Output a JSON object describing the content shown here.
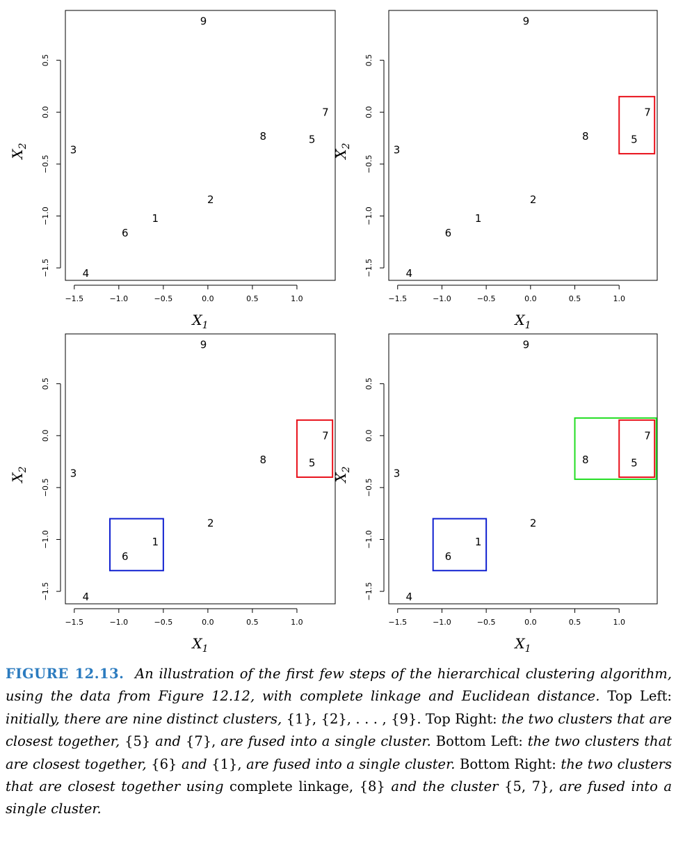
{
  "chart_data": [
    {
      "type": "scatter",
      "panel": "Top Left",
      "xlabel": "X",
      "xlabel_sub": "1",
      "ylabel": "X",
      "ylabel_sub": "2",
      "xlim": [
        -1.6,
        1.43
      ],
      "ylim": [
        -1.62,
        0.98
      ],
      "xticks": [
        -1.5,
        -1.0,
        -0.5,
        0.0,
        0.5,
        1.0
      ],
      "xtick_labels": [
        "−1.5",
        "−1.0",
        "−0.5",
        "0.0",
        "0.5",
        "1.0"
      ],
      "yticks": [
        -1.5,
        -1.0,
        -0.5,
        0.0,
        0.5
      ],
      "ytick_labels": [
        "−1.5",
        "−1.0",
        "−0.5",
        "0.0",
        "0.5"
      ],
      "points": [
        {
          "label": "1",
          "x": -0.59,
          "y": -1.02
        },
        {
          "label": "2",
          "x": 0.03,
          "y": -0.84
        },
        {
          "label": "3",
          "x": -1.51,
          "y": -0.36
        },
        {
          "label": "4",
          "x": -1.37,
          "y": -1.55
        },
        {
          "label": "5",
          "x": 1.17,
          "y": -0.26
        },
        {
          "label": "6",
          "x": -0.93,
          "y": -1.16
        },
        {
          "label": "7",
          "x": 1.32,
          "y": 0.0
        },
        {
          "label": "8",
          "x": 0.62,
          "y": -0.23
        },
        {
          "label": "9",
          "x": -0.05,
          "y": 0.88
        }
      ],
      "clusters": []
    },
    {
      "type": "scatter",
      "panel": "Top Right",
      "xlabel": "X",
      "xlabel_sub": "1",
      "ylabel": "X",
      "ylabel_sub": "2",
      "xlim": [
        -1.6,
        1.43
      ],
      "ylim": [
        -1.62,
        0.98
      ],
      "xticks": [
        -1.5,
        -1.0,
        -0.5,
        0.0,
        0.5,
        1.0
      ],
      "xtick_labels": [
        "−1.5",
        "−1.0",
        "−0.5",
        "0.0",
        "0.5",
        "1.0"
      ],
      "yticks": [
        -1.5,
        -1.0,
        -0.5,
        0.0,
        0.5
      ],
      "ytick_labels": [
        "−1.5",
        "−1.0",
        "−0.5",
        "0.0",
        "0.5"
      ],
      "points": [
        {
          "label": "1",
          "x": -0.59,
          "y": -1.02
        },
        {
          "label": "2",
          "x": 0.03,
          "y": -0.84
        },
        {
          "label": "3",
          "x": -1.51,
          "y": -0.36
        },
        {
          "label": "4",
          "x": -1.37,
          "y": -1.55
        },
        {
          "label": "5",
          "x": 1.17,
          "y": -0.26
        },
        {
          "label": "6",
          "x": -0.93,
          "y": -1.16
        },
        {
          "label": "7",
          "x": 1.32,
          "y": 0.0
        },
        {
          "label": "8",
          "x": 0.62,
          "y": -0.23
        },
        {
          "label": "9",
          "x": -0.05,
          "y": 0.88
        }
      ],
      "clusters": [
        {
          "members": [
            "5",
            "7"
          ],
          "color": "#e8101a",
          "x0": 1.0,
          "x1": 1.4,
          "y0": -0.4,
          "y1": 0.15
        }
      ]
    },
    {
      "type": "scatter",
      "panel": "Bottom Left",
      "xlabel": "X",
      "xlabel_sub": "1",
      "ylabel": "X",
      "ylabel_sub": "2",
      "xlim": [
        -1.6,
        1.43
      ],
      "ylim": [
        -1.62,
        0.98
      ],
      "xticks": [
        -1.5,
        -1.0,
        -0.5,
        0.0,
        0.5,
        1.0
      ],
      "xtick_labels": [
        "−1.5",
        "−1.0",
        "−0.5",
        "0.0",
        "0.5",
        "1.0"
      ],
      "yticks": [
        -1.5,
        -1.0,
        -0.5,
        0.0,
        0.5
      ],
      "ytick_labels": [
        "−1.5",
        "−1.0",
        "−0.5",
        "0.0",
        "0.5"
      ],
      "points": [
        {
          "label": "1",
          "x": -0.59,
          "y": -1.02
        },
        {
          "label": "2",
          "x": 0.03,
          "y": -0.84
        },
        {
          "label": "3",
          "x": -1.51,
          "y": -0.36
        },
        {
          "label": "4",
          "x": -1.37,
          "y": -1.55
        },
        {
          "label": "5",
          "x": 1.17,
          "y": -0.26
        },
        {
          "label": "6",
          "x": -0.93,
          "y": -1.16
        },
        {
          "label": "7",
          "x": 1.32,
          "y": 0.0
        },
        {
          "label": "8",
          "x": 0.62,
          "y": -0.23
        },
        {
          "label": "9",
          "x": -0.05,
          "y": 0.88
        }
      ],
      "clusters": [
        {
          "members": [
            "5",
            "7"
          ],
          "color": "#e8101a",
          "x0": 1.0,
          "x1": 1.4,
          "y0": -0.4,
          "y1": 0.15
        },
        {
          "members": [
            "6",
            "1"
          ],
          "color": "#1020d0",
          "x0": -1.1,
          "x1": -0.5,
          "y0": -1.3,
          "y1": -0.8
        }
      ]
    },
    {
      "type": "scatter",
      "panel": "Bottom Right",
      "xlabel": "X",
      "xlabel_sub": "1",
      "ylabel": "X",
      "ylabel_sub": "2",
      "xlim": [
        -1.6,
        1.43
      ],
      "ylim": [
        -1.62,
        0.98
      ],
      "xticks": [
        -1.5,
        -1.0,
        -0.5,
        0.0,
        0.5,
        1.0
      ],
      "xtick_labels": [
        "−1.5",
        "−1.0",
        "−0.5",
        "0.0",
        "0.5",
        "1.0"
      ],
      "yticks": [
        -1.5,
        -1.0,
        -0.5,
        0.0,
        0.5
      ],
      "ytick_labels": [
        "−1.5",
        "−1.0",
        "−0.5",
        "0.0",
        "0.5"
      ],
      "points": [
        {
          "label": "1",
          "x": -0.59,
          "y": -1.02
        },
        {
          "label": "2",
          "x": 0.03,
          "y": -0.84
        },
        {
          "label": "3",
          "x": -1.51,
          "y": -0.36
        },
        {
          "label": "4",
          "x": -1.37,
          "y": -1.55
        },
        {
          "label": "5",
          "x": 1.17,
          "y": -0.26
        },
        {
          "label": "6",
          "x": -0.93,
          "y": -1.16
        },
        {
          "label": "7",
          "x": 1.32,
          "y": 0.0
        },
        {
          "label": "8",
          "x": 0.62,
          "y": -0.23
        },
        {
          "label": "9",
          "x": -0.05,
          "y": 0.88
        }
      ],
      "clusters": [
        {
          "members": [
            "8",
            "5",
            "7"
          ],
          "color": "#22dd22",
          "x0": 0.5,
          "x1": 1.42,
          "y0": -0.42,
          "y1": 0.17
        },
        {
          "members": [
            "5",
            "7"
          ],
          "color": "#e8101a",
          "x0": 1.0,
          "x1": 1.4,
          "y0": -0.4,
          "y1": 0.15
        },
        {
          "members": [
            "6",
            "1"
          ],
          "color": "#1020d0",
          "x0": -1.1,
          "x1": -0.5,
          "y0": -1.3,
          "y1": -0.8
        }
      ]
    }
  ],
  "caption": {
    "figure_label": "FIGURE 12.13.",
    "p1": "An illustration of the first few steps of the hierarchical clustering algorithm, using the data from Figure 12.12, with complete linkage and Euclidean distance.",
    "tl_label": "Top Left:",
    "tl_text": "initially, there are nine distinct clusters,",
    "tl_sets": "{1}, {2}, . . . , {9}.",
    "tr_label": "Top Right:",
    "tr_text_a": "the two clusters that are closest together,",
    "tr_set_5": "{5}",
    "tr_and": "and",
    "tr_set_7": "{7},",
    "tr_text_b": "are fused into a single cluster.",
    "bl_label": "Bottom Left:",
    "bl_text_a": "the two clusters that are closest together,",
    "bl_set_6": "{6}",
    "bl_and": "and",
    "bl_set_1": "{1},",
    "bl_text_b": "are fused into a single cluster.",
    "br_label": "Bottom Right:",
    "br_text_a": "the two clusters that are closest together using",
    "br_linkage": "complete linkage,",
    "br_set_8": "{8}",
    "br_text_b": "and the cluster",
    "br_set_57": "{5, 7},",
    "br_text_c": "are fused into a single cluster."
  }
}
